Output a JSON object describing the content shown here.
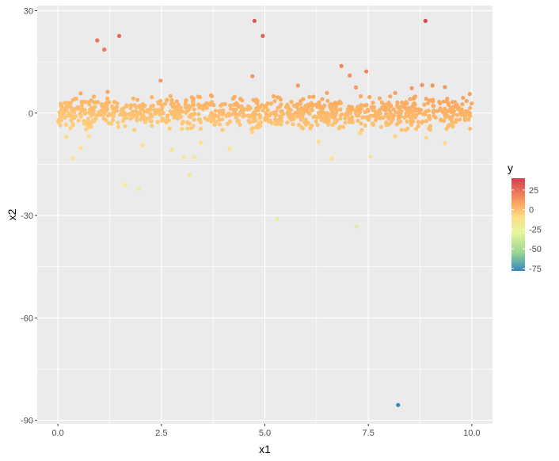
{
  "chart_data": {
    "type": "scatter",
    "xlabel": "x1",
    "ylabel": "x2",
    "xlim": [
      -0.5,
      10.5
    ],
    "ylim": [
      -91,
      31.5
    ],
    "x_ticks": [
      0.0,
      2.5,
      5.0,
      7.5,
      10.0
    ],
    "x_tick_labels": [
      "0.0",
      "2.5",
      "5.0",
      "7.5",
      "10.0"
    ],
    "y_ticks": [
      30,
      0,
      -30,
      -60,
      -90
    ],
    "y_tick_labels": [
      "30",
      "0",
      "-30",
      "-60",
      "-90"
    ],
    "grid": true,
    "panel_background": "#ebebeb",
    "grid_color": "#ffffff",
    "legend": {
      "title": "y",
      "placement": "right",
      "color_range": [
        -78,
        40
      ],
      "tick_values": [
        25,
        0,
        -25,
        -50,
        -75
      ],
      "tick_labels": [
        "25",
        "0",
        "-25",
        "-50",
        "-75"
      ],
      "color_stops": [
        {
          "value": -78,
          "color": "#3288bd"
        },
        {
          "value": -55,
          "color": "#99d594"
        },
        {
          "value": -30,
          "color": "#e6f598"
        },
        {
          "value": -10,
          "color": "#fee08b"
        },
        {
          "value": 5,
          "color": "#fdae61"
        },
        {
          "value": 40,
          "color": "#d53e4f"
        }
      ]
    },
    "cluster": {
      "x_range": [
        0,
        10
      ],
      "y_spread": 2.2,
      "count": 950
    },
    "points": [
      {
        "x": 0.95,
        "y": 21.3,
        "value": 24
      },
      {
        "x": 1.12,
        "y": 18.6,
        "value": 21
      },
      {
        "x": 1.48,
        "y": 22.6,
        "value": 26
      },
      {
        "x": 4.75,
        "y": 27.0,
        "value": 33
      },
      {
        "x": 4.95,
        "y": 22.6,
        "value": 29
      },
      {
        "x": 8.88,
        "y": 27.0,
        "value": 37
      },
      {
        "x": 2.48,
        "y": 9.5,
        "value": 12
      },
      {
        "x": 4.7,
        "y": 10.8,
        "value": 14
      },
      {
        "x": 5.8,
        "y": 8.1,
        "value": 12
      },
      {
        "x": 6.85,
        "y": 13.8,
        "value": 18
      },
      {
        "x": 7.05,
        "y": 11.0,
        "value": 15
      },
      {
        "x": 7.45,
        "y": 12.2,
        "value": 17
      },
      {
        "x": 7.2,
        "y": 7.5,
        "value": 12
      },
      {
        "x": 8.55,
        "y": 7.3,
        "value": 12
      },
      {
        "x": 8.8,
        "y": 8.2,
        "value": 13
      },
      {
        "x": 9.05,
        "y": 8.1,
        "value": 13
      },
      {
        "x": 9.35,
        "y": 7.6,
        "value": 12
      },
      {
        "x": 1.2,
        "y": 6.2,
        "value": 8
      },
      {
        "x": 0.55,
        "y": 5.8,
        "value": 6
      },
      {
        "x": 3.7,
        "y": 5.2,
        "value": 7
      },
      {
        "x": 6.5,
        "y": 5.9,
        "value": 9
      },
      {
        "x": 8.15,
        "y": 5.9,
        "value": 10
      },
      {
        "x": 9.95,
        "y": 5.6,
        "value": 10
      },
      {
        "x": 0.2,
        "y": -7.0,
        "value": -9
      },
      {
        "x": 0.35,
        "y": -13.2,
        "value": -13
      },
      {
        "x": 0.55,
        "y": -10.2,
        "value": -11
      },
      {
        "x": 0.75,
        "y": -6.8,
        "value": -9
      },
      {
        "x": 1.62,
        "y": -21.0,
        "value": -22
      },
      {
        "x": 1.95,
        "y": -22.2,
        "value": -23
      },
      {
        "x": 2.05,
        "y": -9.5,
        "value": -12
      },
      {
        "x": 2.75,
        "y": -10.8,
        "value": -13
      },
      {
        "x": 3.05,
        "y": -12.9,
        "value": -15
      },
      {
        "x": 3.18,
        "y": -18.1,
        "value": -19
      },
      {
        "x": 3.3,
        "y": -13.0,
        "value": -15
      },
      {
        "x": 3.45,
        "y": -8.6,
        "value": -10
      },
      {
        "x": 4.15,
        "y": -10.4,
        "value": -12
      },
      {
        "x": 4.7,
        "y": -5.6,
        "value": -6
      },
      {
        "x": 5.3,
        "y": -31.0,
        "value": -32
      },
      {
        "x": 6.3,
        "y": -8.4,
        "value": -9
      },
      {
        "x": 6.62,
        "y": -13.3,
        "value": -14
      },
      {
        "x": 7.22,
        "y": -33.2,
        "value": -33
      },
      {
        "x": 7.55,
        "y": -12.8,
        "value": -13
      },
      {
        "x": 7.3,
        "y": -5.8,
        "value": -6
      },
      {
        "x": 8.15,
        "y": -6.8,
        "value": -7
      },
      {
        "x": 8.9,
        "y": -7.2,
        "value": -7
      },
      {
        "x": 9.35,
        "y": -8.8,
        "value": -9
      },
      {
        "x": 8.22,
        "y": -85.5,
        "value": -78
      }
    ]
  }
}
